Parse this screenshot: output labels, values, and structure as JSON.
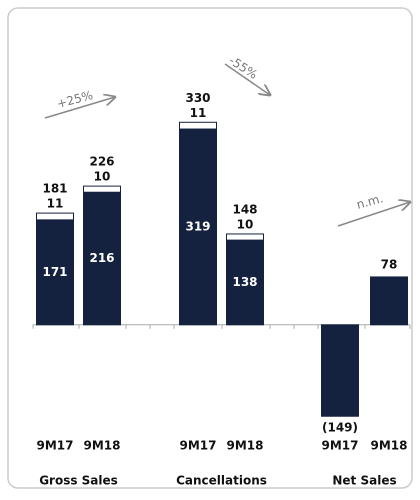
{
  "chart_data": {
    "type": "stacked-bar",
    "categories": [
      "9M17",
      "9M18",
      "9M17",
      "9M18",
      "9M17",
      "9M18"
    ],
    "groups": [
      "Gross Sales",
      "Cancellations",
      "Net Sales"
    ],
    "series": [
      {
        "color": "#14223f",
        "values": [
          171,
          216,
          319,
          138,
          -149,
          78
        ],
        "value_labels": [
          "171",
          "216",
          "319",
          "138",
          "(149)",
          "78"
        ]
      },
      {
        "color": "#ffffff",
        "values": [
          11,
          10,
          11,
          10,
          null,
          null
        ]
      }
    ],
    "totals": [
      181,
      226,
      330,
      148,
      null,
      null
    ],
    "annotations": [
      "+25%",
      "-55%",
      "n.m."
    ],
    "ylim": [
      -160,
      350
    ]
  }
}
